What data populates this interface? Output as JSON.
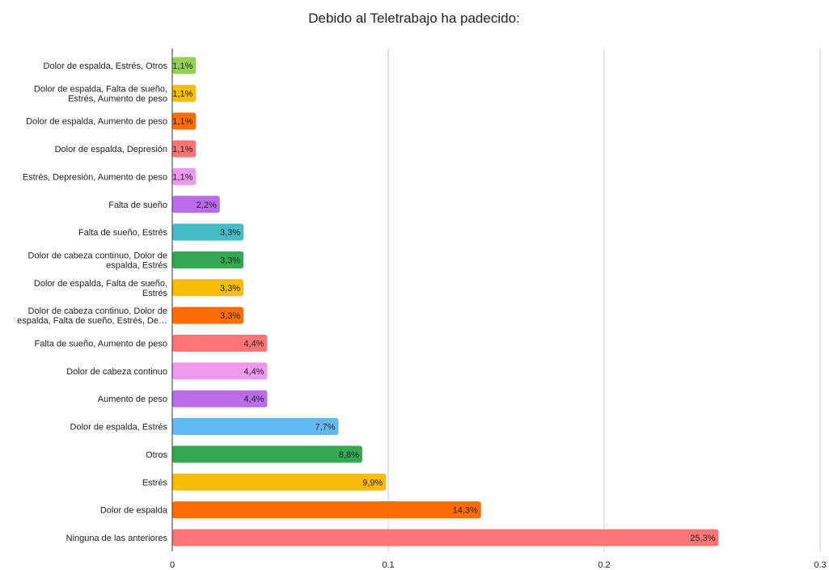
{
  "chart_data": {
    "type": "bar",
    "orientation": "horizontal",
    "title": "Debido al Teletrabajo ha padecido:",
    "xlabel": "",
    "ylabel": "",
    "xlim": [
      0,
      0.3
    ],
    "x_ticks": [
      "0",
      "0.1",
      "0.2",
      "0.3"
    ],
    "grid": true,
    "legend": "none",
    "categories": [
      [
        "Dolor de espalda, Estrés, Otros"
      ],
      [
        "Dolor de espalda, Falta de sueño,",
        "Estrés, Aumento de peso"
      ],
      [
        "Dolor de espalda, Aumento de peso"
      ],
      [
        "Dolor de espalda, Depresión"
      ],
      [
        "Estrés, Depresión, Aumento de peso"
      ],
      [
        "Falta de sueño"
      ],
      [
        "Falta de sueño, Estrés"
      ],
      [
        "Dolor de cabeza continuo, Dolor de",
        "espalda, Estrés"
      ],
      [
        "Dolor de espalda, Falta de sueño,",
        "Estrés"
      ],
      [
        "Dolor de cabeza continuo, Dolor de",
        "espalda, Falta de sueño, Estrés, De…"
      ],
      [
        "Falta de sueño, Aumento de peso"
      ],
      [
        "Dolor de cabeza continuo"
      ],
      [
        "Aumento de peso"
      ],
      [
        "Dolor de espalda, Estrés"
      ],
      [
        "Otros"
      ],
      [
        "Estrés"
      ],
      [
        "Dolor de espalda"
      ],
      [
        "Ninguna de las anteriores"
      ]
    ],
    "values": [
      0.011,
      0.011,
      0.011,
      0.011,
      0.011,
      0.022,
      0.033,
      0.033,
      0.033,
      0.033,
      0.044,
      0.044,
      0.044,
      0.077,
      0.088,
      0.099,
      0.143,
      0.253
    ],
    "data_labels": [
      "1,1%",
      "1,1%",
      "1,1%",
      "1,1%",
      "1,1%",
      "2,2%",
      "3,3%",
      "3,3%",
      "3,3%",
      "3,3%",
      "4,4%",
      "4,4%",
      "4,4%",
      "7,7%",
      "8,8%",
      "9,9%",
      "14,3%",
      "25,3%"
    ],
    "colors": [
      "#93d150",
      "#fbbc04",
      "#ff6d01",
      "#ff7474",
      "#ee99ee",
      "#bb6ceb",
      "#46bdc6",
      "#34a853",
      "#fbbc04",
      "#ff6d01",
      "#ff7474",
      "#ee99ee",
      "#bb6ceb",
      "#62baf5",
      "#34a853",
      "#fbbc04",
      "#ff6d01",
      "#ff7474"
    ]
  }
}
